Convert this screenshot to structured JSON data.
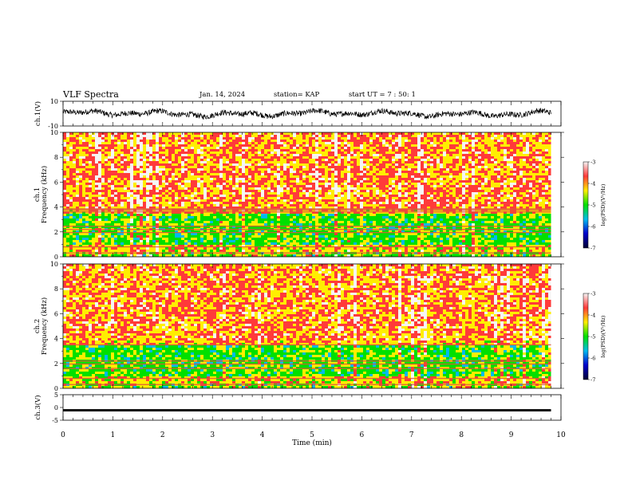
{
  "header": {
    "title": "VLF Spectra",
    "date": "Jan. 14, 2024",
    "station": "station= KAP",
    "start_ut": "start UT =  7 : 50: 1"
  },
  "chart_data": [
    {
      "type": "line",
      "name": "ch1-waveform",
      "ylabel": "ch.1(V)",
      "ylim": [
        -10,
        10
      ],
      "y_tick_labels": [
        "-10",
        "10"
      ],
      "xlim": [
        0,
        10
      ],
      "data_extent_x": [
        0,
        9.8
      ],
      "description_values": {
        "mean": 0,
        "approx_range": [
          -4,
          4
        ]
      },
      "color": "#000000"
    },
    {
      "type": "heatmap",
      "name": "ch1-spectrogram",
      "ylabel": "ch.1\nFrequency (kHz)",
      "ylim": [
        0,
        10
      ],
      "y_ticks": [
        0,
        2,
        4,
        6,
        8,
        10
      ],
      "xlim": [
        0,
        10
      ],
      "data_extent_x": [
        0,
        9.8
      ],
      "band_lines_khz": [
        0.3,
        0.8,
        1.95,
        2.2,
        2.45,
        3.6,
        3.75,
        3.85
      ],
      "colorbar": {
        "label": "log(PSD)(V²/Hz)",
        "range": [
          -7,
          -3
        ],
        "tick_labels": [
          "-3",
          "-4",
          "-5",
          "-6",
          "-7"
        ],
        "ticks": [
          -3,
          -4,
          -5,
          -6,
          -7
        ],
        "colors": [
          "#f5f5f5",
          "#ff3a3a",
          "#ffee00",
          "#00e000",
          "#00bbee",
          "#0000cc",
          "#000033"
        ]
      }
    },
    {
      "type": "heatmap",
      "name": "ch2-spectrogram",
      "ylabel": "ch.2\nFrequency (kHz)",
      "ylim": [
        0,
        10
      ],
      "y_ticks": [
        0,
        2,
        4,
        6,
        8,
        10
      ],
      "xlim": [
        0,
        10
      ],
      "data_extent_x": [
        0,
        9.8
      ],
      "band_lines_khz": [
        0.3,
        0.8,
        1.6,
        1.95,
        2.2,
        3.5
      ],
      "colorbar": {
        "label": "log(PSD)(V²/Hz)",
        "range": [
          -7,
          -3
        ],
        "tick_labels": [
          "-3",
          "-4",
          "-5",
          "-6",
          "-7"
        ],
        "ticks": [
          -3,
          -4,
          -5,
          -6,
          -7
        ],
        "colors": [
          "#f5f5f5",
          "#ff3a3a",
          "#ffee00",
          "#00e000",
          "#00bbee",
          "#0000cc",
          "#000033"
        ]
      }
    },
    {
      "type": "line",
      "name": "ch3-waveform",
      "ylabel": "ch.3(V)",
      "ylim": [
        -5,
        5
      ],
      "y_tick_labels": [
        "-5",
        "0",
        "5"
      ],
      "xlim": [
        0,
        10
      ],
      "data_extent_x": [
        0,
        9.8
      ],
      "description_values": {
        "level": -1.1,
        "band_width": 0.9
      },
      "color": "#000000"
    }
  ],
  "x_axis": {
    "label": "Time (min)",
    "tick_labels": [
      "0",
      "1",
      "2",
      "3",
      "4",
      "5",
      "6",
      "7",
      "8",
      "9",
      "10"
    ]
  }
}
